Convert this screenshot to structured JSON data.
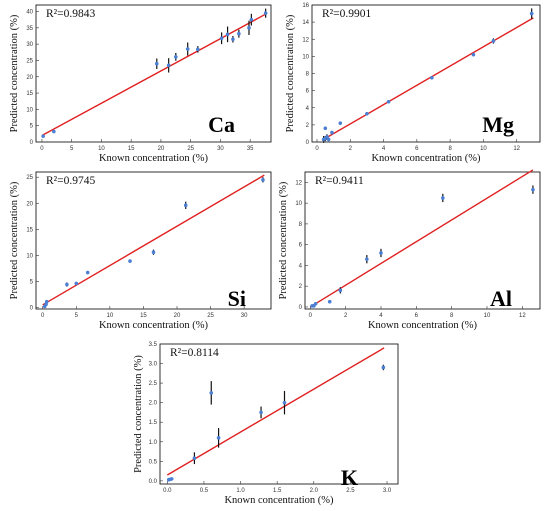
{
  "figure": {
    "colors": {
      "fit_line": "#e02020",
      "points": "#4a7fd4",
      "error_bars": "#111111",
      "frame": "#000000"
    }
  },
  "chart_data": [
    {
      "id": "ca",
      "type": "scatter",
      "element": "Ca",
      "r2": "R²=0.9843",
      "xlabel": "Known concentration  (%)",
      "ylabel": "Predicted  concentration  (%)",
      "xlim": [
        -1,
        38.5
      ],
      "ylim": [
        0,
        42
      ],
      "xticks": [
        0,
        5,
        10,
        15,
        20,
        25,
        30,
        35
      ],
      "yticks": [
        0,
        5,
        10,
        15,
        20,
        25,
        30,
        35,
        40
      ],
      "fit": [
        [
          0,
          2
        ],
        [
          37.7,
          39.3
        ]
      ],
      "points": [
        {
          "x": 0.2,
          "y": 1.8,
          "e": 0.4
        },
        {
          "x": 2,
          "y": 3.2,
          "e": 0.4
        },
        {
          "x": 19.3,
          "y": 24,
          "e": 1.6
        },
        {
          "x": 21.3,
          "y": 23.5,
          "e": 2.2
        },
        {
          "x": 22.5,
          "y": 26.1,
          "e": 1.2
        },
        {
          "x": 24.5,
          "y": 28.5,
          "e": 2.0
        },
        {
          "x": 26.2,
          "y": 28.4,
          "e": 1.0
        },
        {
          "x": 30.2,
          "y": 31.8,
          "e": 1.8
        },
        {
          "x": 31.2,
          "y": 33,
          "e": 2.4
        },
        {
          "x": 32.1,
          "y": 31.5,
          "e": 1.0
        },
        {
          "x": 33.1,
          "y": 33.2,
          "e": 1.2
        },
        {
          "x": 34.8,
          "y": 35,
          "e": 2.2
        },
        {
          "x": 35.2,
          "y": 37.5,
          "e": 1.8
        },
        {
          "x": 37.6,
          "y": 39.5,
          "e": 1.4
        }
      ]
    },
    {
      "id": "mg",
      "type": "scatter",
      "element": "Mg",
      "r2": "R²=0.9901",
      "xlabel": "Known concentration  (%)",
      "ylabel": "Predicted concentration  (%)",
      "xlim": [
        -0.3,
        13.4
      ],
      "ylim": [
        0,
        16
      ],
      "xticks": [
        0,
        2,
        4,
        6,
        8,
        10,
        12
      ],
      "yticks": [
        0,
        2,
        4,
        6,
        8,
        10,
        12,
        14,
        16
      ],
      "fit": [
        [
          0.3,
          0.2
        ],
        [
          13,
          14.5
        ]
      ],
      "points": [
        {
          "x": 0.4,
          "y": 0.3,
          "e": 0.4
        },
        {
          "x": 0.5,
          "y": 0.4,
          "e": 0.3
        },
        {
          "x": 0.6,
          "y": 0.6,
          "e": 0.3
        },
        {
          "x": 0.7,
          "y": 0.3,
          "e": 0.2
        },
        {
          "x": 0.5,
          "y": 1.6,
          "e": 0.2
        },
        {
          "x": 0.9,
          "y": 1.1,
          "e": 0.2
        },
        {
          "x": 1.4,
          "y": 2.2,
          "e": 0.2
        },
        {
          "x": 3,
          "y": 3.3,
          "e": 0.2
        },
        {
          "x": 4.3,
          "y": 4.7,
          "e": 0.2
        },
        {
          "x": 6.9,
          "y": 7.5,
          "e": 0.2
        },
        {
          "x": 9.4,
          "y": 10.2,
          "e": 0.2
        },
        {
          "x": 10.6,
          "y": 11.8,
          "e": 0.3
        },
        {
          "x": 12.9,
          "y": 15,
          "e": 0.6
        }
      ]
    },
    {
      "id": "si",
      "type": "scatter",
      "element": "Si",
      "r2": "R²=0.9745",
      "xlabel": "Known concentration  (%)",
      "ylabel": "Predicted  concentration  (%)",
      "xlim": [
        -1,
        34
      ],
      "ylim": [
        -0.3,
        26
      ],
      "xticks": [
        0,
        5,
        10,
        15,
        20,
        25,
        30
      ],
      "yticks": [
        0,
        5,
        10,
        15,
        20,
        25
      ],
      "fit": [
        [
          0,
          0.5
        ],
        [
          33,
          25.4
        ]
      ],
      "points": [
        {
          "x": 0.3,
          "y": 0.2,
          "e": 0.3
        },
        {
          "x": 0.5,
          "y": 0.6,
          "e": 0.3
        },
        {
          "x": 0.6,
          "y": 1.1,
          "e": 0.3
        },
        {
          "x": 3.6,
          "y": 4.4,
          "e": 0.4
        },
        {
          "x": 5,
          "y": 4.6,
          "e": 0.3
        },
        {
          "x": 6.7,
          "y": 6.7,
          "e": 0.3
        },
        {
          "x": 13,
          "y": 8.9,
          "e": 0.3
        },
        {
          "x": 16.5,
          "y": 10.6,
          "e": 0.5
        },
        {
          "x": 21.3,
          "y": 19.6,
          "e": 0.7
        },
        {
          "x": 32.8,
          "y": 24.5,
          "e": 0.5
        }
      ]
    },
    {
      "id": "al",
      "type": "scatter",
      "element": "Al",
      "r2": "R²=0.9411",
      "xlabel": "Known concentration  (%)",
      "ylabel": "Predicted concentration  (%)",
      "xlim": [
        -0.3,
        13
      ],
      "ylim": [
        -0.2,
        13
      ],
      "xticks": [
        0,
        2,
        4,
        6,
        8,
        10,
        12
      ],
      "yticks": [
        0,
        2,
        4,
        6,
        8,
        10,
        12
      ],
      "fit": [
        [
          0,
          0
        ],
        [
          12.6,
          13.2
        ]
      ],
      "points": [
        {
          "x": 0.1,
          "y": 0.1,
          "e": 0.15
        },
        {
          "x": 0.2,
          "y": 0.1,
          "e": 0.15
        },
        {
          "x": 0.3,
          "y": 0.3,
          "e": 0.15
        },
        {
          "x": 1.1,
          "y": 0.5,
          "e": 0.15
        },
        {
          "x": 1.7,
          "y": 1.6,
          "e": 0.3
        },
        {
          "x": 3.2,
          "y": 4.6,
          "e": 0.4
        },
        {
          "x": 4,
          "y": 5.2,
          "e": 0.4
        },
        {
          "x": 7.5,
          "y": 10.5,
          "e": 0.4
        },
        {
          "x": 12.6,
          "y": 11.3,
          "e": 0.4
        }
      ]
    },
    {
      "id": "k",
      "type": "scatter",
      "element": "K",
      "r2": "R²=0.8114",
      "xlabel": "Known concentration  (%)",
      "ylabel": "Predicted concentration  (%)",
      "xlim": [
        -0.1,
        3.15
      ],
      "ylim": [
        -0.08,
        3.5
      ],
      "xticks": [
        0.0,
        0.5,
        1.0,
        1.5,
        2.0,
        2.5,
        3.0
      ],
      "yticks": [
        0.0,
        0.5,
        1.0,
        1.5,
        2.0,
        2.5,
        3.0,
        3.5
      ],
      "fit": [
        [
          0,
          0.15
        ],
        [
          2.96,
          3.4
        ]
      ],
      "points": [
        {
          "x": 0.02,
          "y": 0.03,
          "e": 0.02
        },
        {
          "x": 0.04,
          "y": 0.04,
          "e": 0.02
        },
        {
          "x": 0.06,
          "y": 0.05,
          "e": 0.02
        },
        {
          "x": 0.37,
          "y": 0.58,
          "e": 0.15
        },
        {
          "x": 0.6,
          "y": 2.25,
          "e": 0.3
        },
        {
          "x": 0.7,
          "y": 1.1,
          "e": 0.25
        },
        {
          "x": 1.28,
          "y": 1.75,
          "e": 0.15
        },
        {
          "x": 1.6,
          "y": 2.0,
          "e": 0.3
        },
        {
          "x": 2.95,
          "y": 2.9,
          "e": 0.07
        }
      ]
    }
  ]
}
